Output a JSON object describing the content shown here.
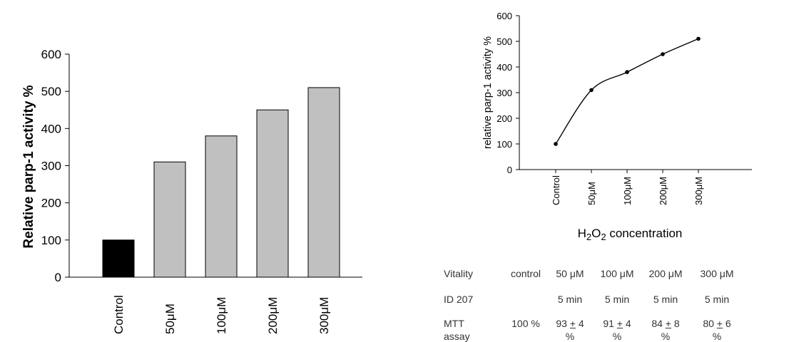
{
  "chart_data": [
    {
      "type": "bar",
      "categories": [
        "Control",
        "50μM",
        "100μM",
        "200μM",
        "300μM"
      ],
      "values": [
        100,
        310,
        380,
        450,
        510
      ],
      "colors": [
        "#000000",
        "#c0c0c0",
        "#c0c0c0",
        "#c0c0c0",
        "#c0c0c0"
      ],
      "xlabel": "",
      "ylabel": "Relative parp-1 activity %",
      "ylim": [
        0,
        600
      ],
      "yticks": [
        0,
        100,
        200,
        300,
        400,
        500,
        600
      ],
      "grid": false
    },
    {
      "type": "line",
      "categories": [
        "Control",
        "50μM",
        "100μM",
        "200μM",
        "300μM"
      ],
      "values": [
        100,
        310,
        380,
        450,
        510
      ],
      "xlabel": "H2O2 concentration",
      "ylabel": "relative parp-1 activity %",
      "ylim": [
        0,
        600
      ],
      "yticks": [
        0,
        100,
        200,
        300,
        400,
        500,
        600
      ],
      "grid": false
    }
  ],
  "table": {
    "header": [
      "Vitality",
      "control",
      "50 μM",
      "100 μM",
      "200 μM",
      "300 μM"
    ],
    "id_row": [
      "ID 207",
      "",
      "5 min",
      "5 min",
      "5 min",
      "5 min"
    ],
    "mtt_label_line1": "MTT",
    "mtt_label_line2": "assay",
    "mtt_control": "100 %",
    "mtt_values": [
      {
        "mean": "93",
        "pm": "+",
        "sd": "4"
      },
      {
        "mean": "91",
        "pm": "+",
        "sd": "4"
      },
      {
        "mean": "84",
        "pm": "+",
        "sd": "8"
      },
      {
        "mean": "80",
        "pm": "+",
        "sd": "6"
      }
    ],
    "unit": "%"
  }
}
